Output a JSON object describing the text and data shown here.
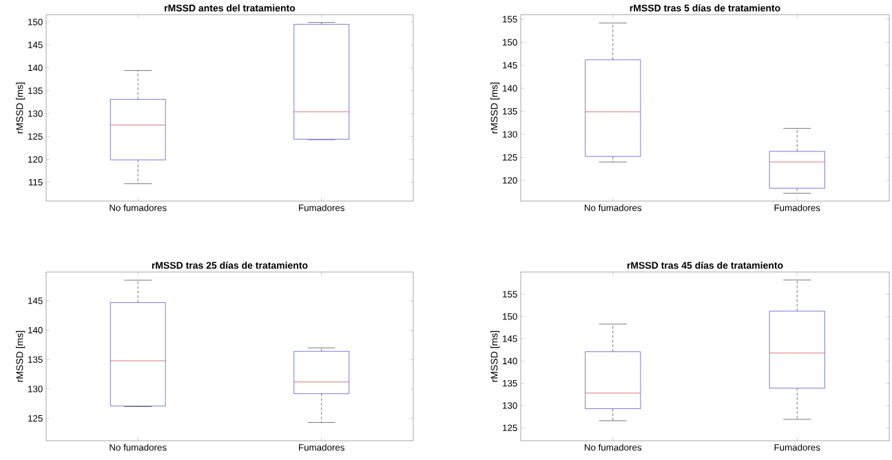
{
  "chart_data": [
    {
      "type": "box",
      "title": "rMSSD antes del tratamiento",
      "ylabel": "rMSSD [ms]",
      "categories": [
        "No fumadores",
        "Fumadores"
      ],
      "ylim": [
        110.9,
        151.6
      ],
      "yticks": [
        115,
        120,
        125,
        130,
        135,
        140,
        145,
        150
      ],
      "grid": false,
      "boxes": [
        {
          "low": 114.7,
          "q1": 119.9,
          "median": 127.5,
          "q3": 133.1,
          "high": 139.4
        },
        {
          "low": 124.3,
          "q1": 124.4,
          "median": 130.4,
          "q3": 149.5,
          "high": 149.9
        }
      ]
    },
    {
      "type": "box",
      "title": "rMSSD tras 5 días de tratamiento",
      "ylabel": "rMSSD [ms]",
      "categories": [
        "No fumadores",
        "Fumadores"
      ],
      "ylim": [
        115.5,
        156
      ],
      "yticks": [
        120,
        125,
        130,
        135,
        140,
        145,
        150,
        155
      ],
      "grid": false,
      "boxes": [
        {
          "low": 124.0,
          "q1": 125.2,
          "median": 134.9,
          "q3": 146.2,
          "high": 154.2
        },
        {
          "low": 117.2,
          "q1": 118.3,
          "median": 124.0,
          "q3": 126.3,
          "high": 131.3
        }
      ]
    },
    {
      "type": "box",
      "title": "rMSSD tras 25 días de tratamiento",
      "ylabel": "rMSSD [ms]",
      "categories": [
        "No fumadores",
        "Fumadores"
      ],
      "ylim": [
        121.2,
        149.9
      ],
      "yticks": [
        125,
        130,
        135,
        140,
        145
      ],
      "grid": false,
      "boxes": [
        {
          "low": 127.0,
          "q1": 127.1,
          "median": 134.8,
          "q3": 144.7,
          "high": 148.5
        },
        {
          "low": 124.3,
          "q1": 129.2,
          "median": 131.2,
          "q3": 136.4,
          "high": 137.0
        }
      ]
    },
    {
      "type": "box",
      "title": "rMSSD tras 45 días de tratamiento",
      "ylabel": "rMSSD [ms]",
      "categories": [
        "No fumadores",
        "Fumadores"
      ],
      "ylim": [
        122.1,
        160
      ],
      "yticks": [
        125,
        130,
        135,
        140,
        145,
        150,
        155
      ],
      "grid": false,
      "boxes": [
        {
          "low": 126.6,
          "q1": 129.3,
          "median": 132.8,
          "q3": 142.1,
          "high": 148.3
        },
        {
          "low": 126.9,
          "q1": 133.9,
          "median": 141.8,
          "q3": 151.2,
          "high": 158.2
        }
      ]
    }
  ]
}
